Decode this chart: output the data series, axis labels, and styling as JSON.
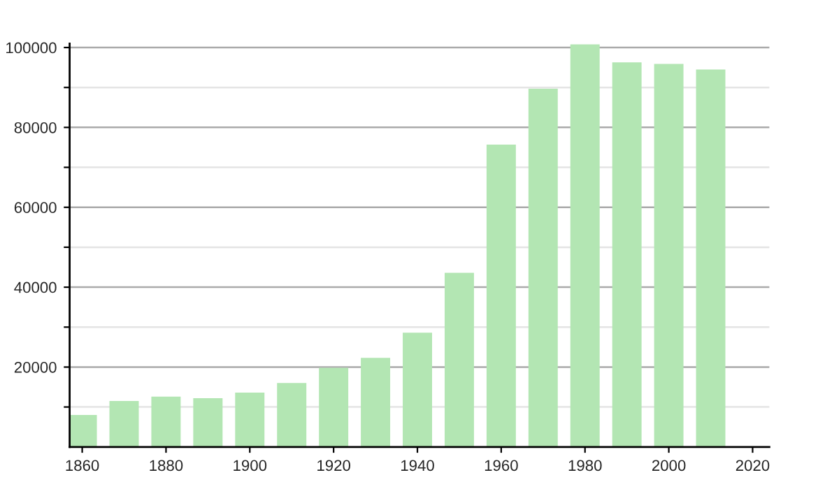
{
  "chart_data": {
    "type": "bar",
    "x": [
      1860,
      1870,
      1880,
      1890,
      1900,
      1910,
      1920,
      1930,
      1940,
      1950,
      1960,
      1970,
      1980,
      1990,
      2000,
      2010
    ],
    "values": [
      8000,
      11500,
      12600,
      12200,
      13600,
      16000,
      19800,
      22300,
      28600,
      43600,
      75700,
      89700,
      100800,
      96300,
      95900,
      94500
    ],
    "color": "#b3e6b3",
    "xlim": [
      1857,
      2024
    ],
    "xticks": [
      1860,
      1880,
      1900,
      1920,
      1940,
      1960,
      1980,
      2000,
      2020
    ],
    "ylim": [
      0,
      101000
    ],
    "yticks": [
      {
        "value": 10000,
        "label": null
      },
      20000,
      {
        "value": 30000,
        "label": null
      },
      40000,
      {
        "value": 50000,
        "label": null
      },
      60000,
      {
        "value": 70000,
        "label": null
      },
      80000,
      {
        "value": 90000,
        "label": null
      },
      100000
    ],
    "grid": "y"
  }
}
